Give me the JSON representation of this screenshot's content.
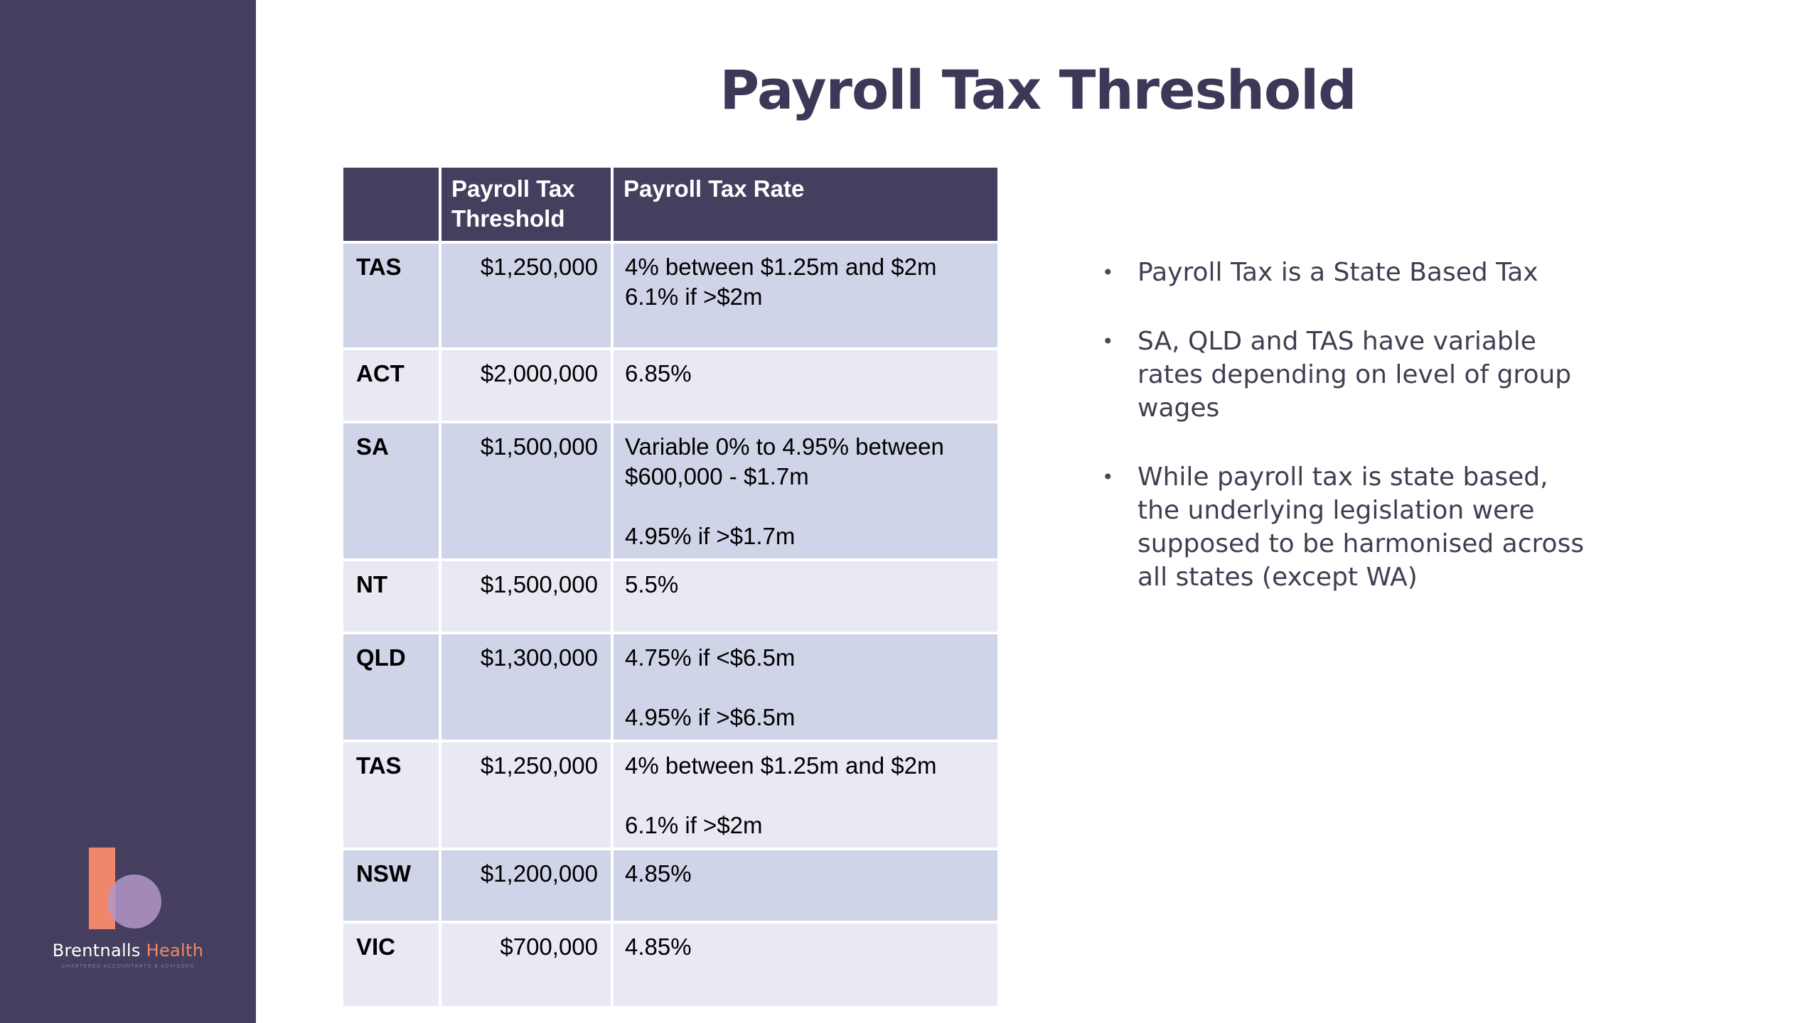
{
  "title": "Payroll Tax Threshold",
  "table": {
    "headers": [
      "",
      "Payroll Tax Threshold",
      "Payroll Tax Rate"
    ],
    "rows": [
      {
        "state": "TAS",
        "threshold": "$1,250,000",
        "rate": [
          "4% between $1.25m and $2m",
          "6.1% if >$2m"
        ]
      },
      {
        "state": "ACT",
        "threshold": "$2,000,000",
        "rate": [
          "6.85%"
        ]
      },
      {
        "state": "SA",
        "threshold": "$1,500,000",
        "rate": [
          "Variable 0% to 4.95% between",
          "$600,000 - $1.7m",
          "",
          "4.95% if >$1.7m"
        ]
      },
      {
        "state": "NT",
        "threshold": "$1,500,000",
        "rate": [
          "5.5%"
        ]
      },
      {
        "state": "QLD",
        "threshold": "$1,300,000",
        "rate": [
          "4.75% if <$6.5m",
          "",
          "4.95% if >$6.5m"
        ]
      },
      {
        "state": "TAS",
        "threshold": "$1,250,000",
        "rate": [
          "4% between $1.25m and $2m",
          "",
          "6.1% if >$2m"
        ]
      },
      {
        "state": "NSW",
        "threshold": "$1,200,000",
        "rate": [
          "4.85%"
        ]
      },
      {
        "state": "VIC",
        "threshold": "$700,000",
        "rate": [
          "4.85%"
        ]
      }
    ]
  },
  "bullets": [
    "Payroll Tax is a State Based Tax",
    "SA, QLD and TAS have variable rates depending on level of group wages",
    "While payroll tax is state based, the underlying legislation were supposed to be harmonised across all states (except WA)"
  ],
  "logo": {
    "name_part1": "Brentnalls",
    "name_part2": "Health",
    "tagline": "CHARTERED ACCOUNTANTS & ADVISORS"
  },
  "colors": {
    "sidebar": "#453e5e",
    "header": "#453e5e",
    "row_odd": "#cfd4e8",
    "row_even": "#e8e9f3",
    "accent": "#f0876a"
  }
}
